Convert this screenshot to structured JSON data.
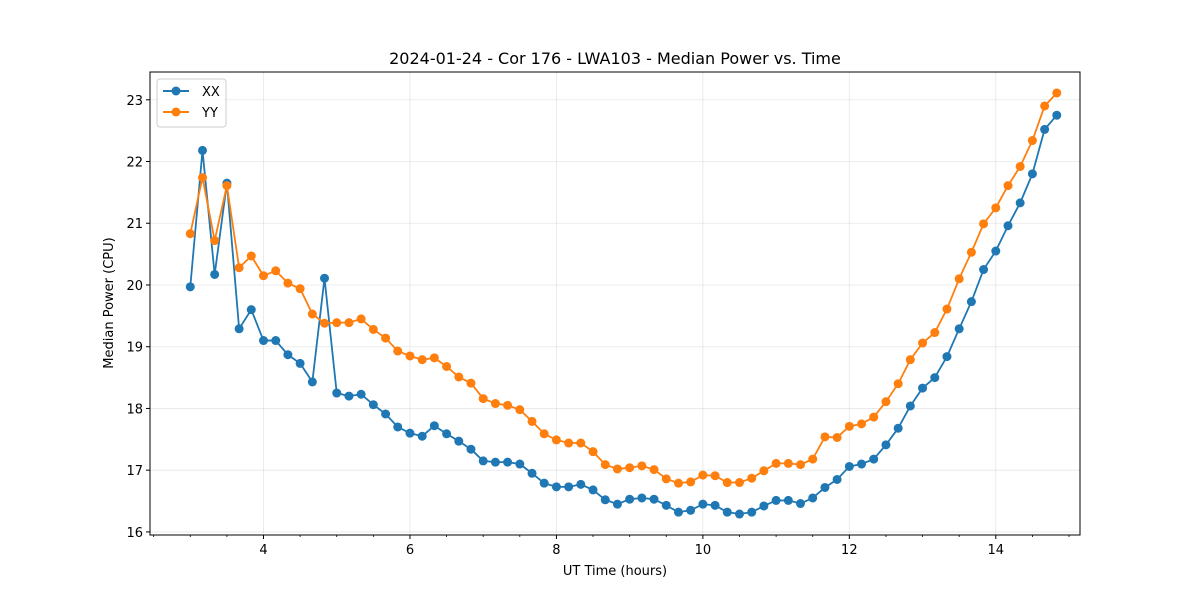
{
  "chart_data": {
    "type": "line",
    "title": "2024-01-24 - Cor 176 - LWA103 - Median Power vs. Time",
    "xlabel": "UT Time (hours)",
    "ylabel": "Median Power (CPU)",
    "xlim": [
      2.45,
      15.15
    ],
    "ylim": [
      15.95,
      23.45
    ],
    "xticks": [
      4,
      6,
      8,
      10,
      12,
      14
    ],
    "xtick_labels": [
      "4",
      "6",
      "8",
      "10",
      "12",
      "14"
    ],
    "yticks": [
      16,
      17,
      18,
      19,
      20,
      21,
      22,
      23
    ],
    "ytick_labels": [
      "16",
      "17",
      "18",
      "19",
      "20",
      "21",
      "22",
      "23"
    ],
    "grid": true,
    "legend_position": "top-left",
    "x": [
      3.0,
      3.167,
      3.333,
      3.5,
      3.667,
      3.833,
      4.0,
      4.167,
      4.333,
      4.5,
      4.667,
      4.833,
      5.0,
      5.167,
      5.333,
      5.5,
      5.667,
      5.833,
      6.0,
      6.167,
      6.333,
      6.5,
      6.667,
      6.833,
      7.0,
      7.167,
      7.333,
      7.5,
      7.667,
      7.833,
      8.0,
      8.167,
      8.333,
      8.5,
      8.667,
      8.833,
      9.0,
      9.167,
      9.333,
      9.5,
      9.667,
      9.833,
      10.0,
      10.167,
      10.333,
      10.5,
      10.667,
      10.833,
      11.0,
      11.167,
      11.333,
      11.5,
      11.667,
      11.833,
      12.0,
      12.167,
      12.333,
      12.5,
      12.667,
      12.833,
      13.0,
      13.167,
      13.333,
      13.5,
      13.667,
      13.833,
      14.0,
      14.167,
      14.333,
      14.5,
      14.667,
      14.833
    ],
    "series": [
      {
        "name": "XX",
        "color": "#1f77b4",
        "values": [
          19.97,
          22.18,
          20.17,
          21.65,
          19.29,
          19.6,
          19.1,
          19.1,
          18.87,
          18.73,
          18.43,
          20.11,
          18.25,
          18.2,
          18.23,
          18.06,
          17.91,
          17.7,
          17.6,
          17.55,
          17.72,
          17.59,
          17.47,
          17.34,
          17.15,
          17.13,
          17.13,
          17.1,
          16.95,
          16.79,
          16.73,
          16.73,
          16.77,
          16.68,
          16.52,
          16.45,
          16.53,
          16.55,
          16.53,
          16.43,
          16.32,
          16.35,
          16.45,
          16.43,
          16.32,
          16.29,
          16.32,
          16.42,
          16.51,
          16.51,
          16.46,
          16.55,
          16.72,
          16.85,
          17.06,
          17.1,
          17.18,
          17.41,
          17.68,
          18.04,
          18.33,
          18.5,
          18.84,
          19.29,
          19.73,
          20.25,
          20.55,
          20.96,
          21.33,
          21.8,
          22.52,
          22.75
        ]
      },
      {
        "name": "YY",
        "color": "#ff7f0e",
        "values": [
          20.83,
          21.74,
          20.72,
          21.61,
          20.28,
          20.47,
          20.15,
          20.23,
          20.03,
          19.94,
          19.53,
          19.38,
          19.39,
          19.39,
          19.45,
          19.28,
          19.14,
          18.93,
          18.85,
          18.79,
          18.82,
          18.68,
          18.51,
          18.41,
          18.16,
          18.08,
          18.05,
          17.98,
          17.79,
          17.59,
          17.49,
          17.44,
          17.44,
          17.3,
          17.09,
          17.02,
          17.04,
          17.07,
          17.01,
          16.86,
          16.79,
          16.81,
          16.92,
          16.91,
          16.8,
          16.8,
          16.87,
          16.99,
          17.11,
          17.11,
          17.09,
          17.18,
          17.54,
          17.53,
          17.71,
          17.75,
          17.86,
          18.11,
          18.4,
          18.79,
          19.06,
          19.23,
          19.61,
          20.1,
          20.53,
          20.99,
          21.25,
          21.61,
          21.92,
          22.34,
          22.9,
          23.11
        ]
      }
    ]
  }
}
